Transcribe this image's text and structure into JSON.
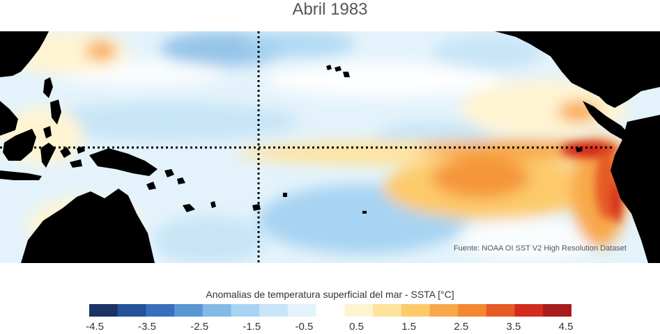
{
  "title": "Abril 1983",
  "source_text": "Fuente: NOAA OI SST V2 High Resolution Dataset",
  "colorbar": {
    "title": "Anomalias de temperatura superficial del mar - SSTA  [°C]",
    "ticks": [
      "-4.5",
      "-3.5",
      "-2.5",
      "-1.5",
      "-0.5",
      "0.5",
      "1.5",
      "2.5",
      "3.5",
      "4.5"
    ],
    "colors": [
      "#1c3366",
      "#24529b",
      "#3a6fbd",
      "#5a95d3",
      "#82b9e6",
      "#a7d4f2",
      "#c8e5f7",
      "#e4f3fb",
      "#ffffff",
      "#fff4d2",
      "#ffe39c",
      "#fdca6a",
      "#f8a84a",
      "#f3882e",
      "#e65a26",
      "#d32b1e",
      "#a81c1c"
    ]
  },
  "map": {
    "land_color": "#000000",
    "ocean_base_color": "#e4f3fb",
    "anomaly_peak_color": "#d32b1e"
  }
}
